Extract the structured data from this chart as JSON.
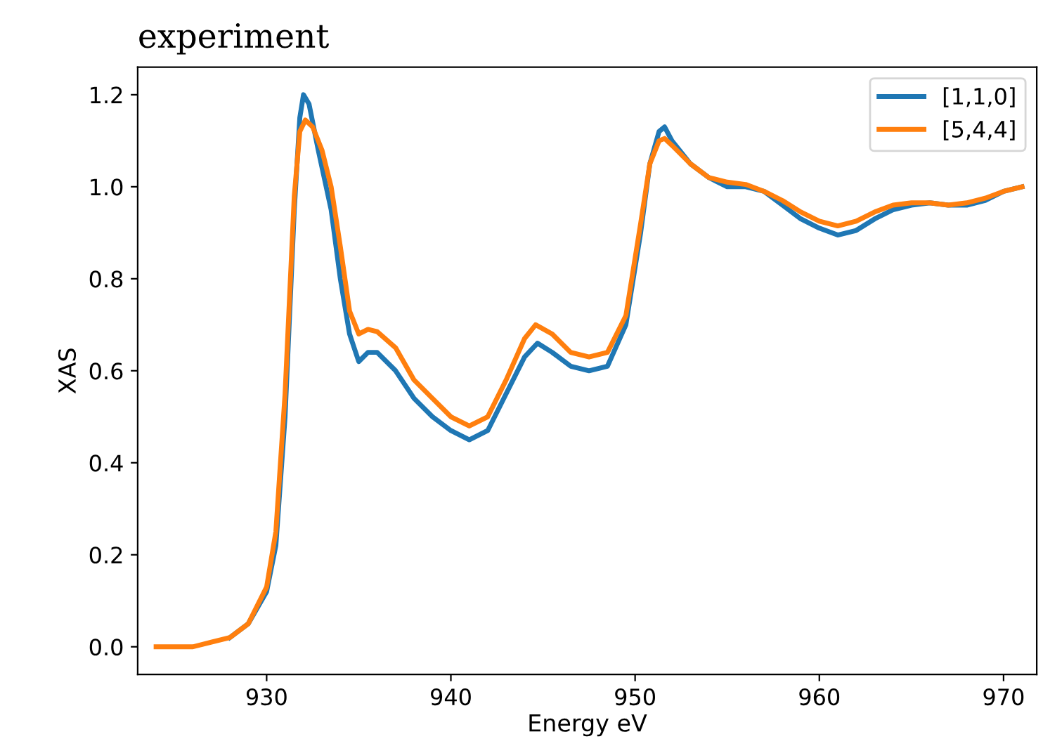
{
  "chart_data": {
    "type": "line",
    "title": "experiment",
    "xlabel": "Energy eV",
    "ylabel": "XAS",
    "xlim": [
      923,
      971.8
    ],
    "ylim": [
      -0.06,
      1.26
    ],
    "xticks": [
      930,
      940,
      950,
      960,
      970
    ],
    "yticks": [
      {
        "value": 0,
        "label": "0.0"
      },
      0.2,
      0.4,
      0.6,
      0.8,
      {
        "value": 1,
        "label": "1.0"
      },
      1.2
    ],
    "grid": false,
    "legend": "top right",
    "marker": "none",
    "line_style": "solid",
    "series": [
      {
        "name": "[1,1,0]",
        "color": "#1f77b4",
        "x": [
          928,
          929,
          930,
          930.5,
          931,
          931.5,
          931.8,
          932.0,
          932.3,
          932.8,
          933.5,
          934,
          934.5,
          935,
          935.5,
          936,
          937,
          938,
          939,
          940,
          941,
          942,
          943,
          944,
          944.7,
          945.5,
          946.5,
          947.5,
          948.5,
          949.5,
          950.3,
          950.8,
          951.3,
          951.6,
          952,
          953,
          954,
          955,
          956,
          957,
          958,
          959,
          960,
          961,
          962,
          963,
          964,
          965,
          966,
          967,
          968,
          969,
          970,
          971
        ],
        "values": [
          0.02,
          0.05,
          0.12,
          0.22,
          0.5,
          0.95,
          1.15,
          1.2,
          1.18,
          1.08,
          0.95,
          0.8,
          0.68,
          0.62,
          0.64,
          0.64,
          0.6,
          0.54,
          0.5,
          0.47,
          0.45,
          0.47,
          0.55,
          0.63,
          0.66,
          0.64,
          0.61,
          0.6,
          0.61,
          0.7,
          0.9,
          1.05,
          1.12,
          1.13,
          1.1,
          1.05,
          1.02,
          1.0,
          1.0,
          0.99,
          0.96,
          0.93,
          0.91,
          0.895,
          0.905,
          0.93,
          0.95,
          0.96,
          0.965,
          0.96,
          0.96,
          0.97,
          0.99,
          1.0
        ]
      },
      {
        "name": "[5,4,4]",
        "color": "#ff7f0e",
        "x": [
          924,
          925,
          926,
          927,
          928,
          929,
          930,
          930.5,
          931,
          931.5,
          931.8,
          932.1,
          932.5,
          933,
          933.5,
          934,
          934.5,
          935,
          935.5,
          936,
          937,
          938,
          939,
          940,
          941,
          942,
          943,
          944,
          944.6,
          945.5,
          946.5,
          947.5,
          948.5,
          949.5,
          950.3,
          950.8,
          951.3,
          951.6,
          952,
          953,
          954,
          955,
          956,
          957,
          958,
          959,
          960,
          961,
          962,
          963,
          964,
          965,
          966,
          967,
          968,
          969,
          970,
          971
        ],
        "values": [
          0.0,
          0.0,
          0.0,
          0.01,
          0.02,
          0.05,
          0.13,
          0.25,
          0.55,
          0.98,
          1.12,
          1.145,
          1.13,
          1.08,
          1.0,
          0.87,
          0.73,
          0.68,
          0.69,
          0.685,
          0.65,
          0.58,
          0.54,
          0.5,
          0.48,
          0.5,
          0.58,
          0.67,
          0.7,
          0.68,
          0.64,
          0.63,
          0.64,
          0.72,
          0.92,
          1.05,
          1.1,
          1.105,
          1.09,
          1.05,
          1.02,
          1.01,
          1.005,
          0.99,
          0.97,
          0.945,
          0.925,
          0.915,
          0.925,
          0.945,
          0.96,
          0.965,
          0.965,
          0.96,
          0.965,
          0.975,
          0.99,
          1.0
        ]
      }
    ]
  }
}
